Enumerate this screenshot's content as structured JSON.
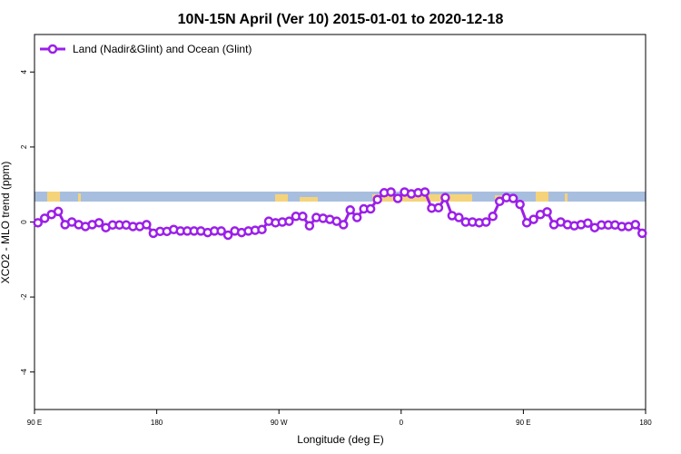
{
  "chart_data": {
    "type": "line",
    "title": "10N-15N April (Ver 10)   2015-01-01 to 2020-12-18",
    "xlabel": "Longitude (deg E)",
    "ylabel": "XCO2 - MLO trend (ppm)",
    "xlim": [
      90,
      540
    ],
    "xticks": [
      {
        "value": 90,
        "label": "90 E"
      },
      180,
      {
        "value": 270,
        "label": "90 W"
      },
      {
        "value": 360,
        "label": "0"
      },
      {
        "value": 450,
        "label": "90 E"
      },
      {
        "value": 540,
        "label": "180"
      }
    ],
    "ylim": [
      -5,
      5
    ],
    "yticks": [
      -4,
      -2,
      0,
      2,
      4
    ],
    "legend": "top-left",
    "series": [
      {
        "name": "Land (Nadir&Glint) and Ocean (Glint)",
        "color": "#9b1fe8",
        "x": [
          92.5,
          97.5,
          102.5,
          107.5,
          112.5,
          117.5,
          122.5,
          127.5,
          132.5,
          137.5,
          142.5,
          147.5,
          152.5,
          157.5,
          162.5,
          167.5,
          172.5,
          177.5,
          182.5,
          187.5,
          192.5,
          197.5,
          202.5,
          207.5,
          212.5,
          217.5,
          222.5,
          227.5,
          232.5,
          237.5,
          242.5,
          247.5,
          252.5,
          257.5,
          262.5,
          267.5,
          272.5,
          277.5,
          282.5,
          287.5,
          292.5,
          297.5,
          302.5,
          307.5,
          312.5,
          317.5,
          322.5,
          327.5,
          332.5,
          337.5,
          342.5,
          347.5,
          352.5,
          357.5,
          362.5,
          367.5,
          372.5,
          377.5,
          382.5,
          387.5,
          392.5,
          397.5,
          402.5,
          407.5,
          412.5,
          417.5,
          422.5,
          427.5,
          432.5,
          437.5,
          442.5,
          447.5,
          452.5,
          457.5,
          462.5,
          467.5,
          472.5,
          477.5,
          482.5,
          487.5,
          492.5,
          497.5,
          502.5,
          507.5,
          512.5,
          517.5,
          522.5,
          527.5,
          532.5,
          537.5
        ],
        "values": [
          -0.02,
          0.1,
          0.2,
          0.28,
          -0.07,
          0.0,
          -0.07,
          -0.12,
          -0.07,
          -0.02,
          -0.15,
          -0.08,
          -0.08,
          -0.08,
          -0.12,
          -0.12,
          -0.07,
          -0.3,
          -0.25,
          -0.25,
          -0.2,
          -0.24,
          -0.24,
          -0.24,
          -0.24,
          -0.28,
          -0.24,
          -0.24,
          -0.35,
          -0.24,
          -0.28,
          -0.24,
          -0.22,
          -0.2,
          0.02,
          -0.02,
          0.0,
          0.02,
          0.15,
          0.15,
          -0.1,
          0.12,
          0.1,
          0.07,
          0.02,
          -0.07,
          0.32,
          0.12,
          0.35,
          0.35,
          0.6,
          0.78,
          0.8,
          0.63,
          0.8,
          0.75,
          0.78,
          0.8,
          0.37,
          0.38,
          0.65,
          0.17,
          0.12,
          0.0,
          0.0,
          -0.02,
          0.0,
          0.15,
          0.55,
          0.65,
          0.63,
          0.47,
          -0.02,
          0.07,
          0.2,
          0.27,
          -0.07,
          0.0,
          -0.07,
          -0.1,
          -0.07,
          -0.03,
          -0.15,
          -0.08,
          -0.08,
          -0.08,
          -0.12,
          -0.12,
          -0.07,
          -0.3
        ]
      }
    ]
  }
}
